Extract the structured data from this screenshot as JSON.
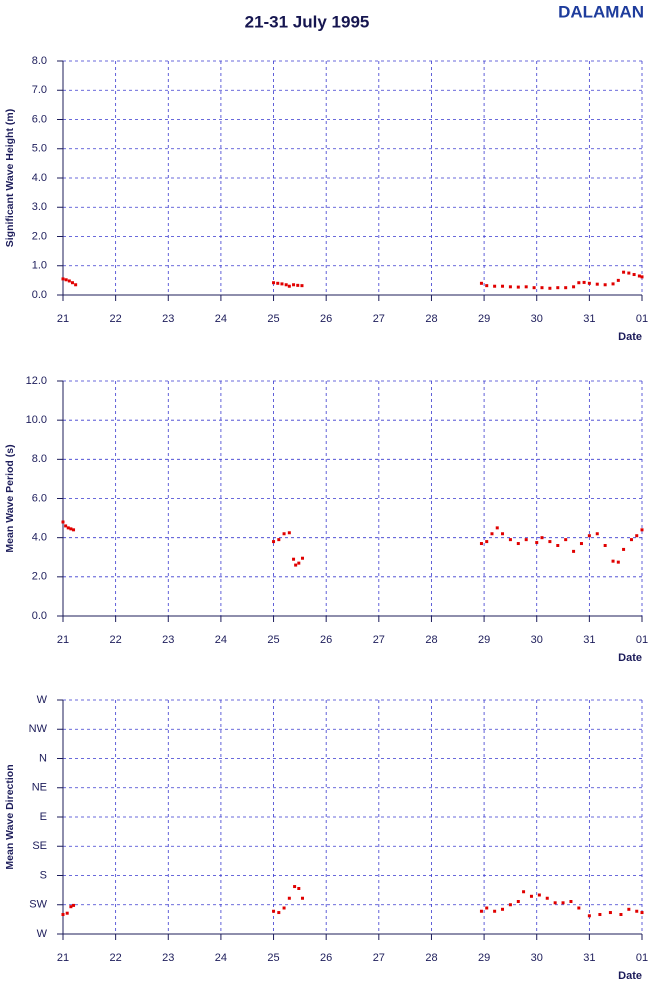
{
  "title": "21-31 July 1995",
  "station": "DALAMAN",
  "chart_data": [
    {
      "type": "scatter",
      "ylabel": "Significant Wave Height (m)",
      "xlabel": "Date",
      "color": "#e00000",
      "grid": true,
      "xlim": [
        21,
        32
      ],
      "xticks": [
        21,
        22,
        23,
        24,
        25,
        26,
        27,
        28,
        29,
        30,
        31,
        {
          "value": 32,
          "label": "01"
        }
      ],
      "ylim": [
        0,
        8
      ],
      "yticks": [
        {
          "value": 0,
          "label": "0.0"
        },
        {
          "value": 1,
          "label": "1.0"
        },
        {
          "value": 2,
          "label": "2.0"
        },
        {
          "value": 3,
          "label": "3.0"
        },
        {
          "value": 4,
          "label": "4.0"
        },
        {
          "value": 5,
          "label": "5.0"
        },
        {
          "value": 6,
          "label": "6.0"
        },
        {
          "value": 7,
          "label": "7.0"
        },
        {
          "value": 8,
          "label": "8.0"
        }
      ],
      "x": [
        21.0,
        21.06,
        21.12,
        21.18,
        21.24,
        25.0,
        25.08,
        25.16,
        25.24,
        25.3,
        25.38,
        25.46,
        25.54,
        28.95,
        29.05,
        29.2,
        29.35,
        29.5,
        29.65,
        29.8,
        29.95,
        30.1,
        30.25,
        30.4,
        30.55,
        30.7,
        30.8,
        30.9,
        31.0,
        31.15,
        31.3,
        31.45,
        31.55,
        31.65,
        31.75,
        31.85,
        31.95,
        32.0
      ],
      "y": [
        0.55,
        0.52,
        0.48,
        0.42,
        0.35,
        0.42,
        0.4,
        0.38,
        0.35,
        0.3,
        0.35,
        0.33,
        0.32,
        0.4,
        0.32,
        0.3,
        0.3,
        0.28,
        0.27,
        0.28,
        0.25,
        0.25,
        0.23,
        0.25,
        0.25,
        0.28,
        0.42,
        0.43,
        0.4,
        0.37,
        0.35,
        0.38,
        0.5,
        0.78,
        0.75,
        0.7,
        0.65,
        0.62
      ]
    },
    {
      "type": "scatter",
      "ylabel": "Mean Wave Period (s)",
      "xlabel": "Date",
      "color": "#e00000",
      "grid": true,
      "xlim": [
        21,
        32
      ],
      "xticks": [
        21,
        22,
        23,
        24,
        25,
        26,
        27,
        28,
        29,
        30,
        31,
        {
          "value": 32,
          "label": "01"
        }
      ],
      "ylim": [
        0,
        12
      ],
      "yticks": [
        {
          "value": 0,
          "label": "0.0"
        },
        {
          "value": 2,
          "label": "2.0"
        },
        {
          "value": 4,
          "label": "4.0"
        },
        {
          "value": 6,
          "label": "6.0"
        },
        {
          "value": 8,
          "label": "8.0"
        },
        {
          "value": 10,
          "label": "10.0"
        },
        {
          "value": 12,
          "label": "12.0"
        }
      ],
      "x": [
        21.0,
        21.05,
        21.1,
        21.15,
        21.2,
        25.0,
        25.1,
        25.2,
        25.3,
        25.38,
        25.42,
        25.48,
        25.55,
        28.95,
        29.05,
        29.15,
        29.25,
        29.35,
        29.5,
        29.65,
        29.8,
        30.0,
        30.1,
        30.25,
        30.4,
        30.55,
        30.7,
        30.85,
        31.0,
        31.15,
        31.3,
        31.45,
        31.55,
        31.65,
        31.8,
        31.9,
        32.0
      ],
      "y": [
        4.8,
        4.6,
        4.5,
        4.45,
        4.4,
        3.8,
        3.9,
        4.2,
        4.25,
        2.9,
        2.6,
        2.7,
        2.95,
        3.7,
        3.8,
        4.2,
        4.5,
        4.2,
        3.9,
        3.7,
        3.9,
        3.75,
        4.0,
        3.8,
        3.6,
        3.9,
        3.3,
        3.7,
        4.1,
        4.2,
        3.6,
        2.8,
        2.75,
        3.4,
        3.9,
        4.1,
        4.4
      ]
    },
    {
      "type": "scatter",
      "ylabel": "Mean Wave Direction",
      "xlabel": "Date",
      "color": "#e00000",
      "grid": true,
      "xlim": [
        21,
        32
      ],
      "xticks": [
        21,
        22,
        23,
        24,
        25,
        26,
        27,
        28,
        29,
        30,
        31,
        {
          "value": 32,
          "label": "01"
        }
      ],
      "ylim": [
        270,
        -90
      ],
      "yticks": [
        {
          "value": 270,
          "label": "W"
        },
        {
          "value": 225,
          "label": "SW"
        },
        {
          "value": 180,
          "label": "S"
        },
        {
          "value": 135,
          "label": "SE"
        },
        {
          "value": 90,
          "label": "E"
        },
        {
          "value": 45,
          "label": "NE"
        },
        {
          "value": 0,
          "label": "N"
        },
        {
          "value": -45,
          "label": "NW"
        },
        {
          "value": -90,
          "label": "W"
        }
      ],
      "x": [
        21.0,
        21.08,
        21.15,
        21.2,
        25.0,
        25.1,
        25.2,
        25.3,
        25.4,
        25.48,
        25.55,
        28.95,
        29.05,
        29.2,
        29.35,
        29.5,
        29.65,
        29.75,
        29.9,
        30.05,
        30.2,
        30.35,
        30.5,
        30.65,
        30.8,
        31.0,
        31.2,
        31.4,
        31.6,
        31.75,
        31.9,
        32.0
      ],
      "y": [
        240,
        238,
        228,
        226,
        235,
        237,
        230,
        215,
        197,
        200,
        215,
        235,
        230,
        235,
        232,
        225,
        220,
        205,
        212,
        210,
        215,
        222,
        222,
        220,
        230,
        242,
        240,
        237,
        240,
        232,
        235,
        237
      ]
    }
  ]
}
